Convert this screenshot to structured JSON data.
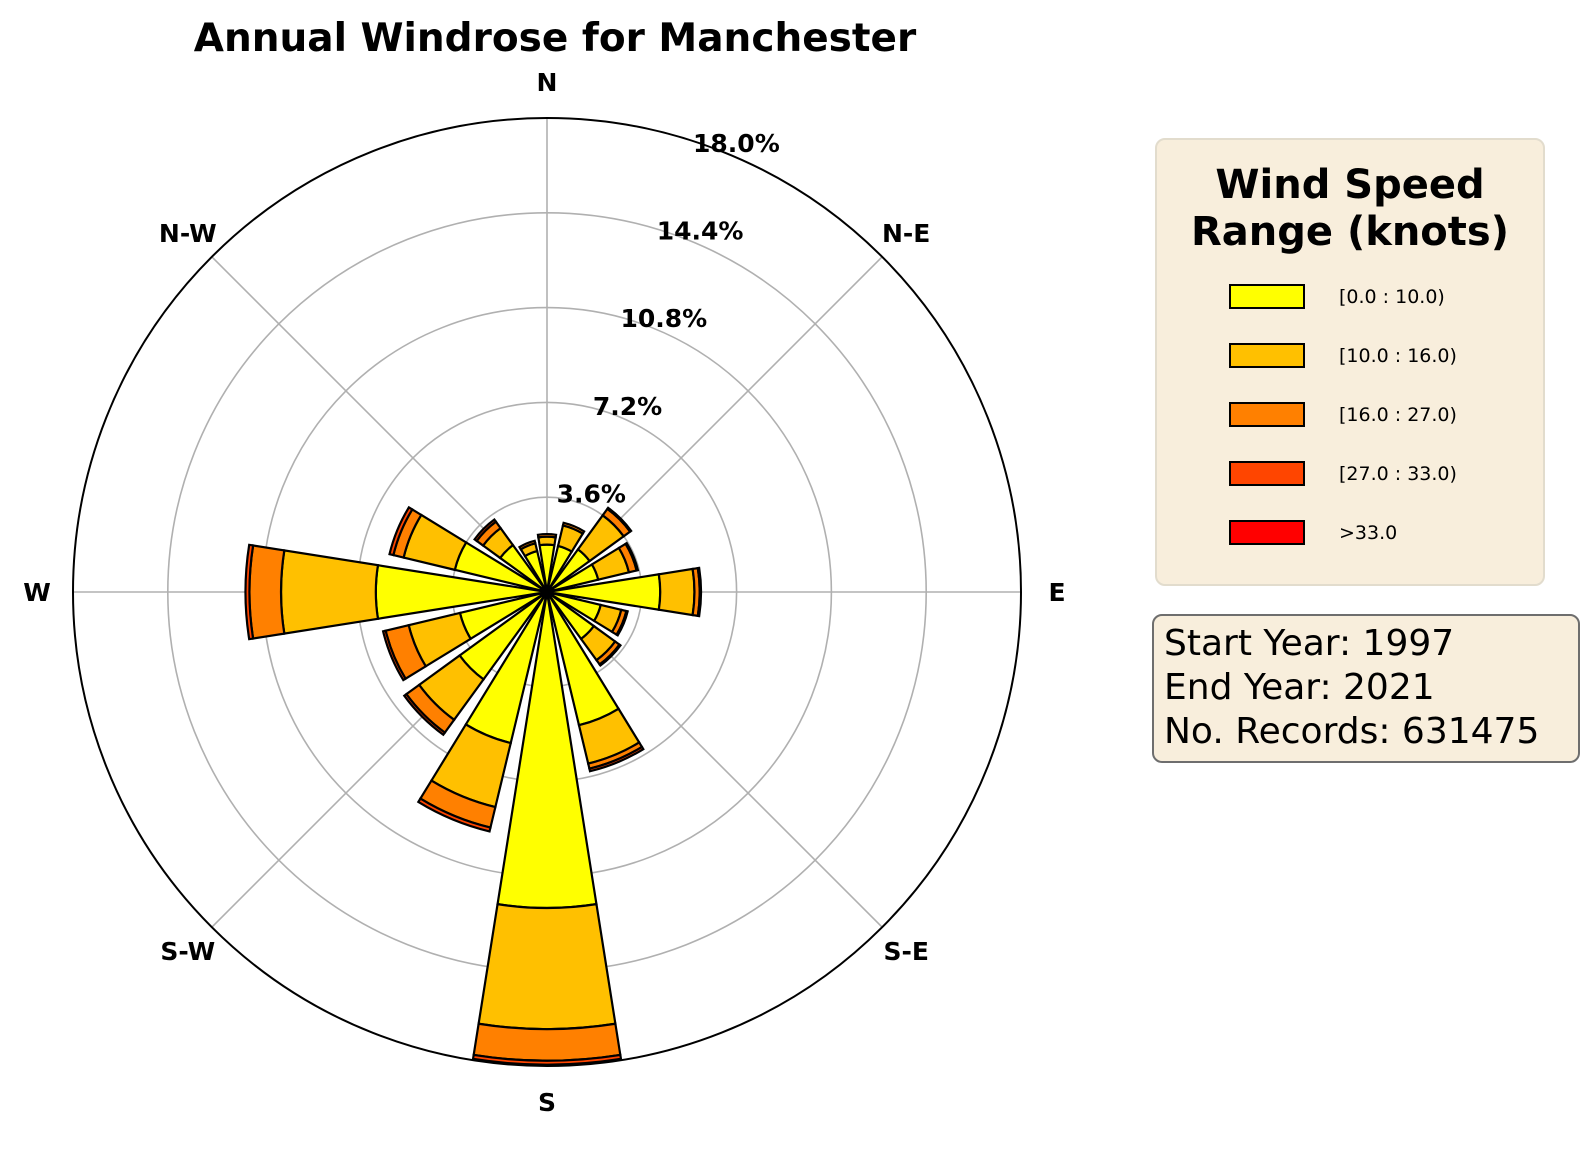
{
  "chart_data": {
    "type": "windrose",
    "title": "Annual Windrose for Manchester",
    "directions": [
      "N",
      "NNE",
      "NE",
      "ENE",
      "E",
      "ESE",
      "SE",
      "SSE",
      "S",
      "SSW",
      "SW",
      "WSW",
      "W",
      "WNW",
      "NW",
      "NNW"
    ],
    "direction_labels": [
      "N",
      "N-E",
      "E",
      "S-E",
      "S",
      "S-W",
      "W",
      "N-W"
    ],
    "radial_ticks": [
      3.6,
      7.2,
      10.8,
      14.4,
      18.0
    ],
    "radial_tick_labels": [
      "3.6%",
      "7.2%",
      "10.8%",
      "14.4%",
      "18.0%"
    ],
    "rmax": 18.0,
    "series": [
      {
        "name": "[0.0 : 10.0)",
        "color": "#ffff00",
        "values": [
          1.8,
          1.8,
          2.0,
          2.0,
          4.3,
          2.1,
          2.2,
          5.2,
          12.0,
          5.9,
          4.1,
          3.4,
          6.5,
          3.6,
          2.2,
          1.6
        ]
      },
      {
        "name": "[10.0 : 16.0)",
        "color": "#ffc000",
        "values": [
          0.3,
          0.8,
          1.6,
          1.2,
          1.3,
          0.8,
          1.0,
          1.5,
          4.6,
          2.5,
          1.9,
          2.0,
          3.6,
          2.0,
          0.8,
          0.3
        ]
      },
      {
        "name": "[16.0 : 27.0)",
        "color": "#ff8000",
        "values": [
          0.1,
          0.1,
          0.3,
          0.3,
          0.2,
          0.2,
          0.2,
          0.2,
          1.2,
          0.8,
          0.6,
          0.9,
          1.2,
          0.4,
          0.3,
          0.1
        ]
      },
      {
        "name": "[27.0 : 33.0)",
        "color": "#ff4500",
        "values": [
          0,
          0,
          0.05,
          0.05,
          0.05,
          0.05,
          0.05,
          0.1,
          0.15,
          0.15,
          0.1,
          0.1,
          0.15,
          0.15,
          0.1,
          0
        ]
      },
      {
        "name": ">33.0",
        "color": "#ff0000",
        "values": [
          0,
          0,
          0,
          0,
          0,
          0,
          0,
          0,
          0,
          0,
          0,
          0,
          0,
          0,
          0,
          0
        ]
      }
    ],
    "legend_placement": "right",
    "grid": true
  },
  "legend": {
    "title_line1": "Wind Speed",
    "title_line2": "Range (knots)",
    "items": [
      {
        "label": "[0.0 : 10.0)",
        "color": "#ffff00"
      },
      {
        "label": "[10.0 : 16.0)",
        "color": "#ffc000"
      },
      {
        "label": "[16.0 : 27.0)",
        "color": "#ff8000"
      },
      {
        "label": "[27.0 : 33.0)",
        "color": "#ff4500"
      },
      {
        "label": ">33.0",
        "color": "#ff0000"
      }
    ]
  },
  "info": {
    "start_year": "Start Year: 1997",
    "end_year": "End Year: 2021",
    "records": "No. Records: 631475"
  }
}
